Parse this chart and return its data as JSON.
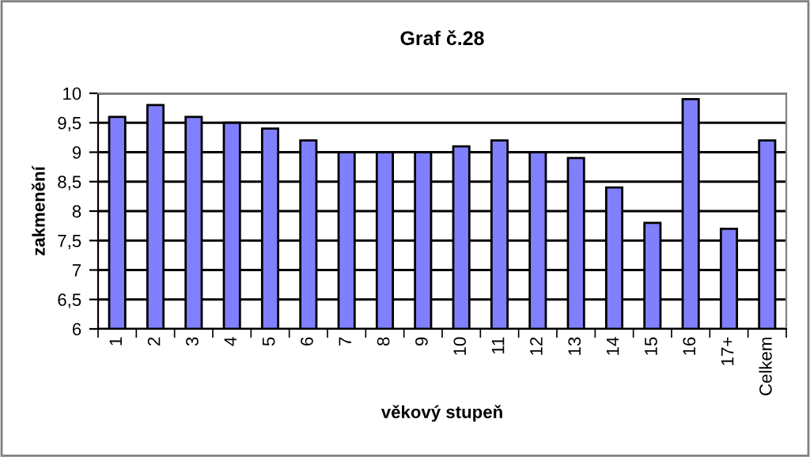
{
  "chart_data": {
    "type": "bar",
    "title": "Graf č.28",
    "xlabel": "věkový stupeň",
    "ylabel": "zakmenění",
    "categories": [
      "1",
      "2",
      "3",
      "4",
      "5",
      "6",
      "7",
      "8",
      "9",
      "10",
      "11",
      "12",
      "13",
      "14",
      "15",
      "16",
      "17+",
      "Celkem"
    ],
    "values": [
      9.6,
      9.8,
      9.6,
      9.5,
      9.4,
      9.2,
      9.0,
      9.0,
      9.0,
      9.1,
      9.2,
      9.0,
      8.9,
      8.4,
      7.8,
      9.9,
      7.7,
      9.2
    ],
    "color": "#8080ff",
    "ylim": [
      6,
      10
    ],
    "yticks": [
      6,
      {
        "value": 6.5,
        "label": "6,5"
      },
      7,
      {
        "value": 7.5,
        "label": "7,5"
      },
      8,
      {
        "value": 8.5,
        "label": "8,5"
      },
      9,
      {
        "value": 9.5,
        "label": "9,5"
      },
      10
    ],
    "grid": "y",
    "legend": false
  }
}
